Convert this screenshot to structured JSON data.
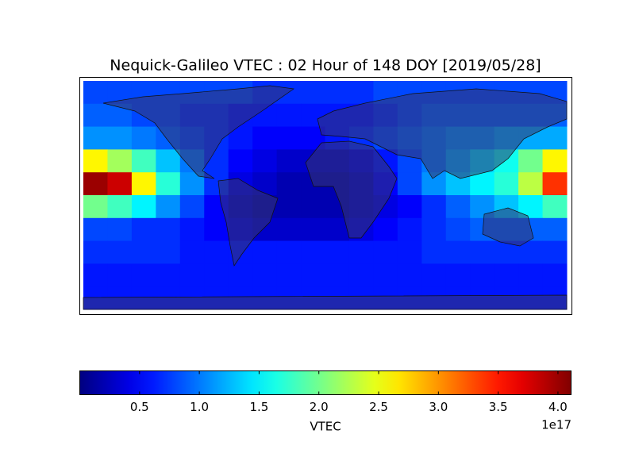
{
  "chart_data": {
    "type": "heatmap",
    "title": "Nequick-Galileo VTEC : 02 Hour of 148 DOY [2019/05/28]",
    "colormap": "jet",
    "z": [
      [
        0.8,
        0.8,
        0.8,
        0.8,
        0.8,
        0.8,
        0.8,
        0.7,
        0.7,
        0.7,
        0.7,
        0.7,
        0.8,
        0.8,
        0.8,
        0.8,
        0.8,
        0.8,
        0.8,
        0.8
      ],
      [
        0.9,
        0.9,
        0.8,
        0.8,
        0.7,
        0.7,
        0.6,
        0.6,
        0.6,
        0.6,
        0.6,
        0.6,
        0.7,
        0.8,
        0.9,
        0.9,
        0.9,
        0.9,
        0.9,
        0.9
      ],
      [
        1.1,
        1.1,
        1.0,
        0.9,
        0.8,
        0.7,
        0.6,
        0.5,
        0.5,
        0.5,
        0.6,
        0.7,
        0.8,
        0.9,
        1.0,
        1.1,
        1.1,
        1.2,
        1.2,
        1.2
      ],
      [
        2.6,
        2.2,
        1.8,
        1.3,
        1.0,
        0.7,
        0.5,
        0.4,
        0.3,
        0.3,
        0.3,
        0.4,
        0.6,
        0.8,
        1.0,
        1.2,
        1.4,
        1.6,
        2.0,
        2.6
      ],
      [
        4.0,
        3.8,
        2.6,
        1.7,
        1.1,
        0.7,
        0.4,
        0.3,
        0.2,
        0.2,
        0.2,
        0.3,
        0.5,
        0.8,
        1.1,
        1.3,
        1.5,
        1.7,
        2.3,
        3.4
      ],
      [
        2.0,
        1.8,
        1.5,
        1.1,
        0.8,
        0.5,
        0.3,
        0.2,
        0.2,
        0.2,
        0.2,
        0.3,
        0.4,
        0.5,
        0.7,
        0.9,
        1.1,
        1.3,
        1.5,
        1.8
      ],
      [
        0.8,
        0.8,
        0.7,
        0.7,
        0.6,
        0.5,
        0.4,
        0.3,
        0.3,
        0.3,
        0.3,
        0.4,
        0.5,
        0.6,
        0.7,
        0.8,
        0.9,
        0.9,
        0.9,
        0.9
      ],
      [
        0.7,
        0.7,
        0.7,
        0.7,
        0.6,
        0.6,
        0.6,
        0.6,
        0.6,
        0.6,
        0.6,
        0.6,
        0.6,
        0.6,
        0.7,
        0.7,
        0.7,
        0.7,
        0.7,
        0.7
      ],
      [
        0.6,
        0.6,
        0.6,
        0.6,
        0.6,
        0.6,
        0.6,
        0.6,
        0.6,
        0.6,
        0.6,
        0.6,
        0.6,
        0.6,
        0.6,
        0.6,
        0.6,
        0.6,
        0.6,
        0.6
      ],
      [
        0.6,
        0.6,
        0.6,
        0.6,
        0.6,
        0.6,
        0.6,
        0.6,
        0.6,
        0.6,
        0.6,
        0.6,
        0.6,
        0.6,
        0.6,
        0.6,
        0.6,
        0.6,
        0.6,
        0.6
      ]
    ],
    "clim": [
      0,
      4.11
    ],
    "colorbar_ticks": [
      0.5,
      {
        "value": 1,
        "label": "1.0"
      },
      1.5,
      {
        "value": 2,
        "label": "2.0"
      },
      2.5,
      {
        "value": 3,
        "label": "3.0"
      },
      3.5,
      {
        "value": 4,
        "label": "4.0"
      }
    ],
    "colorbar_label": "VTEC",
    "colorbar_offset": "1e17"
  }
}
